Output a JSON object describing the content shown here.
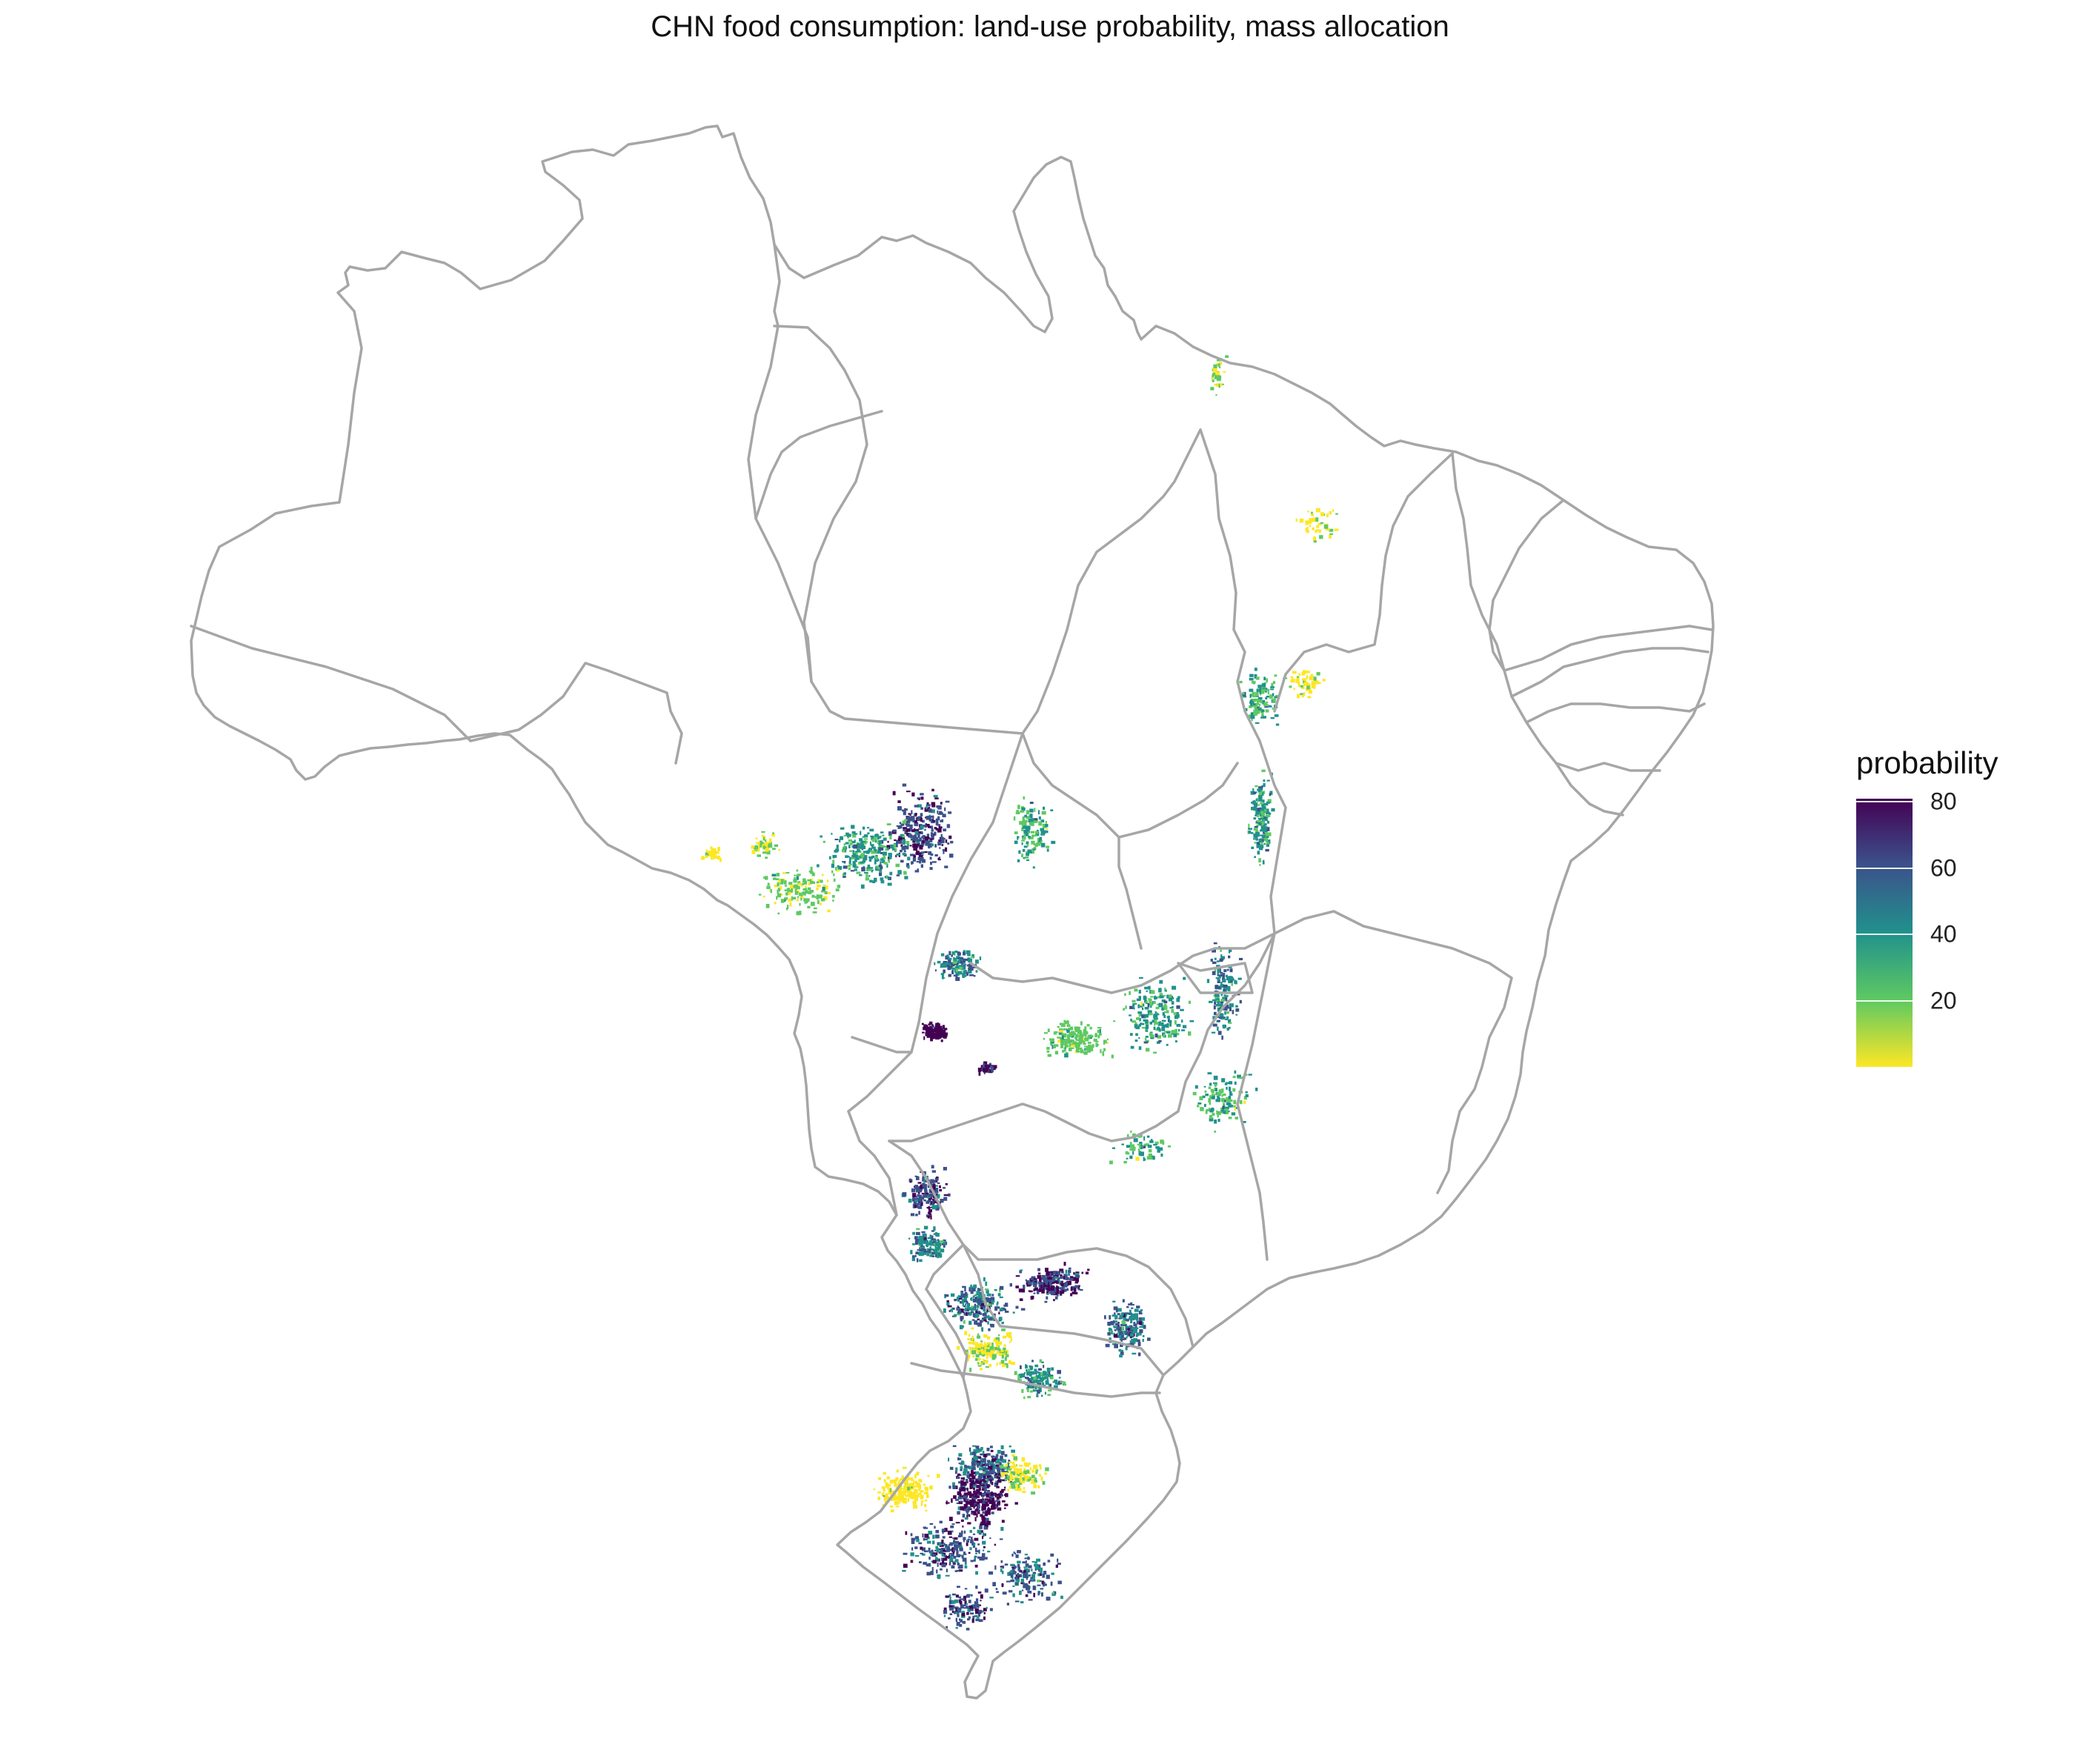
{
  "title": "CHN food consumption: land-use probability, mass allocation",
  "legend": {
    "title": "probability",
    "ticks": [
      {
        "label": "80",
        "value": 80
      },
      {
        "label": "60",
        "value": 60
      },
      {
        "label": "40",
        "value": 40
      },
      {
        "label": "20",
        "value": 20
      }
    ],
    "range": [
      0,
      81
    ],
    "colors": [
      "#440154",
      "#3b528b",
      "#21918c",
      "#5ec962",
      "#fde725"
    ]
  },
  "map": {
    "country": "Brazil",
    "boundary_color": "#a6a6a6",
    "background": "#ffffff"
  }
}
